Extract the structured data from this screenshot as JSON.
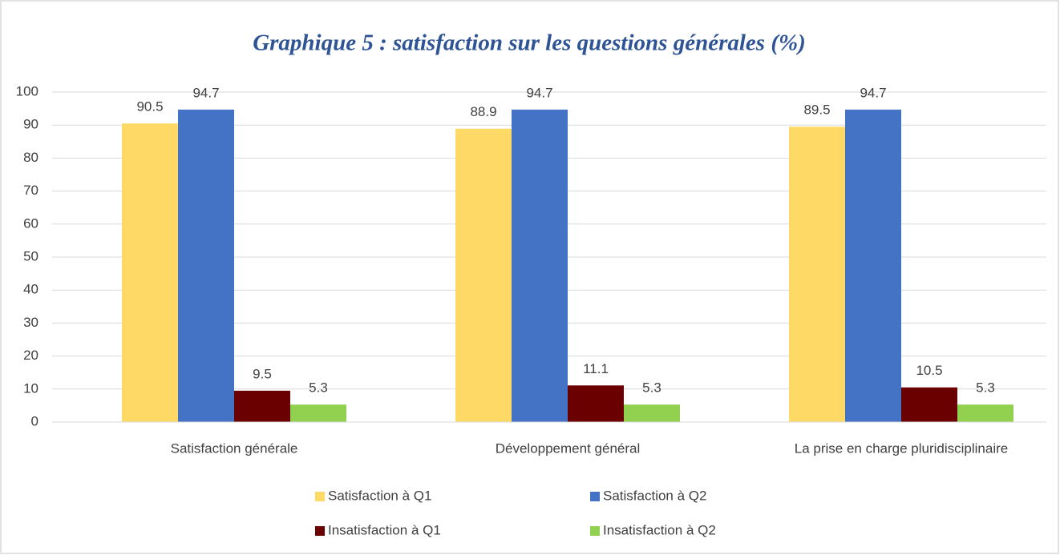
{
  "chart_data": {
    "type": "bar",
    "title": "Graphique 5 : satisfaction sur les questions générales (%)",
    "categories": [
      "Satisfaction générale",
      "Développement général",
      "La prise en charge pluridisciplinaire"
    ],
    "series": [
      {
        "name": "Satisfaction à Q1",
        "color": "#ffd966",
        "values": [
          90.5,
          88.9,
          89.5
        ]
      },
      {
        "name": "Satisfaction à Q2",
        "color": "#4472c4",
        "values": [
          94.7,
          94.7,
          94.7
        ]
      },
      {
        "name": "Insatisfaction à Q1",
        "color": "#6b0000",
        "values": [
          9.5,
          11.1,
          10.5
        ]
      },
      {
        "name": "Insatisfaction à Q2",
        "color": "#92d050",
        "values": [
          5.3,
          5.3,
          5.3
        ]
      }
    ],
    "ylim": [
      0,
      100
    ],
    "yticks": [
      0,
      10,
      20,
      30,
      40,
      50,
      60,
      70,
      80,
      90,
      100
    ],
    "grid": true,
    "legend": "bottom"
  }
}
